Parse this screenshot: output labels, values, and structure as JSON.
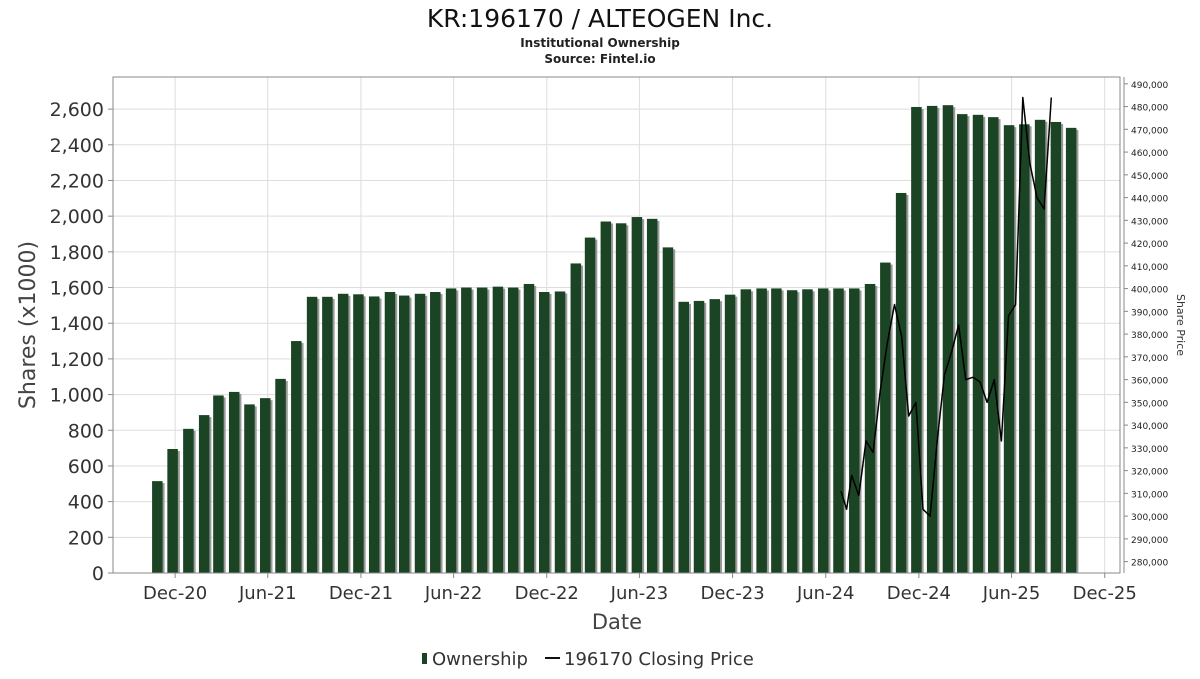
{
  "chart_data": {
    "type": "bar",
    "title": "KR:196170 / ALTEOGEN Inc.",
    "subtitle_lines": [
      "Institutional Ownership",
      "Source: Fintel.io"
    ],
    "xlabel": "Date",
    "ylabel": "Shares (x1000)",
    "y2label": "Share Price",
    "ylim": [
      0,
      2780
    ],
    "y2lim": [
      275000,
      493000
    ],
    "x_range": [
      "2020-08-01",
      "2025-12-31"
    ],
    "x_ticks": [
      {
        "date": "2020-12-01",
        "label": "Dec-20"
      },
      {
        "date": "2021-06-01",
        "label": "Jun-21"
      },
      {
        "date": "2021-12-01",
        "label": "Dec-21"
      },
      {
        "date": "2022-06-01",
        "label": "Jun-22"
      },
      {
        "date": "2022-12-01",
        "label": "Dec-22"
      },
      {
        "date": "2023-06-01",
        "label": "Jun-23"
      },
      {
        "date": "2023-12-01",
        "label": "Dec-23"
      },
      {
        "date": "2024-06-01",
        "label": "Jun-24"
      },
      {
        "date": "2024-12-01",
        "label": "Dec-24"
      },
      {
        "date": "2025-06-01",
        "label": "Jun-25"
      },
      {
        "date": "2025-12-01",
        "label": "Dec-25"
      }
    ],
    "y_ticks": [
      {
        "value": 0,
        "label": "0"
      },
      {
        "value": 200,
        "label": "200"
      },
      {
        "value": 400,
        "label": "400"
      },
      {
        "value": 600,
        "label": "600"
      },
      {
        "value": 800,
        "label": "800"
      },
      {
        "value": 1000,
        "label": "1,000"
      },
      {
        "value": 1200,
        "label": "1,200"
      },
      {
        "value": 1400,
        "label": "1,400"
      },
      {
        "value": 1600,
        "label": "1,600"
      },
      {
        "value": 1800,
        "label": "1,800"
      },
      {
        "value": 2000,
        "label": "2,000"
      },
      {
        "value": 2200,
        "label": "2,200"
      },
      {
        "value": 2400,
        "label": "2,400"
      },
      {
        "value": 2600,
        "label": "2,600"
      }
    ],
    "y2_ticks": [
      {
        "value": 280000,
        "label": "280,000"
      },
      {
        "value": 290000,
        "label": "290,000"
      },
      {
        "value": 300000,
        "label": "300,000"
      },
      {
        "value": 310000,
        "label": "310,000"
      },
      {
        "value": 320000,
        "label": "320,000"
      },
      {
        "value": 330000,
        "label": "330,000"
      },
      {
        "value": 340000,
        "label": "340,000"
      },
      {
        "value": 350000,
        "label": "350,000"
      },
      {
        "value": 360000,
        "label": "360,000"
      },
      {
        "value": 370000,
        "label": "370,000"
      },
      {
        "value": 380000,
        "label": "380,000"
      },
      {
        "value": 390000,
        "label": "390,000"
      },
      {
        "value": 400000,
        "label": "400,000"
      },
      {
        "value": 410000,
        "label": "410,000"
      },
      {
        "value": 420000,
        "label": "420,000"
      },
      {
        "value": 430000,
        "label": "430,000"
      },
      {
        "value": 440000,
        "label": "440,000"
      },
      {
        "value": 450000,
        "label": "450,000"
      },
      {
        "value": 460000,
        "label": "460,000"
      },
      {
        "value": 470000,
        "label": "470,000"
      },
      {
        "value": 480000,
        "label": "480,000"
      },
      {
        "value": 490000,
        "label": "490,000"
      }
    ],
    "grid": true,
    "legend_position": "bottom",
    "colors": {
      "bar": "#1b4424",
      "bar_shadow": "#9a9a9a",
      "line": "#000000",
      "grid": "#dddddd",
      "axis": "#888888",
      "text": "#333333"
    },
    "series": [
      {
        "name": "Ownership",
        "kind": "bar",
        "x": [
          "2020-10-31",
          "2020-11-30",
          "2020-12-31",
          "2021-01-31",
          "2021-02-28",
          "2021-03-31",
          "2021-04-30",
          "2021-05-31",
          "2021-06-30",
          "2021-07-31",
          "2021-08-31",
          "2021-09-30",
          "2021-10-31",
          "2021-11-30",
          "2021-12-31",
          "2022-01-31",
          "2022-02-28",
          "2022-03-31",
          "2022-04-30",
          "2022-05-31",
          "2022-06-30",
          "2022-07-31",
          "2022-08-31",
          "2022-09-30",
          "2022-10-31",
          "2022-11-30",
          "2022-12-31",
          "2023-01-31",
          "2023-02-28",
          "2023-03-31",
          "2023-04-30",
          "2023-05-31",
          "2023-06-30",
          "2023-07-31",
          "2023-08-31",
          "2023-09-30",
          "2023-10-31",
          "2023-11-30",
          "2023-12-31",
          "2024-01-31",
          "2024-02-29",
          "2024-03-31",
          "2024-04-30",
          "2024-05-31",
          "2024-06-30",
          "2024-07-31",
          "2024-08-31",
          "2024-09-30",
          "2024-10-31",
          "2024-11-30",
          "2024-12-31",
          "2025-01-31",
          "2025-02-28",
          "2025-03-31",
          "2025-04-30",
          "2025-05-31",
          "2025-06-30",
          "2025-07-31",
          "2025-08-31",
          "2025-09-30"
        ],
        "values": [
          515,
          695,
          808,
          885,
          995,
          1015,
          945,
          980,
          1088,
          1300,
          1548,
          1548,
          1565,
          1562,
          1550,
          1575,
          1555,
          1565,
          1575,
          1595,
          1600,
          1600,
          1605,
          1600,
          1620,
          1575,
          1578,
          1735,
          1880,
          1970,
          1960,
          1995,
          1985,
          1825,
          1520,
          1525,
          1535,
          1560,
          1590,
          1595,
          1595,
          1585,
          1590,
          1595,
          1595,
          1595,
          1620,
          1740,
          2130,
          2612,
          2618,
          2622,
          2572,
          2568,
          2555,
          2510,
          2515,
          2540,
          2528,
          2495
        ]
      },
      {
        "name": "196170 Closing Price",
        "kind": "line",
        "points": [
          [
            "2024-07-01",
            311000
          ],
          [
            "2024-07-12",
            303000
          ],
          [
            "2024-07-22",
            318000
          ],
          [
            "2024-08-05",
            309000
          ],
          [
            "2024-08-19",
            333000
          ],
          [
            "2024-09-02",
            328000
          ],
          [
            "2024-09-16",
            355000
          ],
          [
            "2024-09-30",
            376000
          ],
          [
            "2024-10-14",
            393000
          ],
          [
            "2024-10-28",
            379000
          ],
          [
            "2024-11-11",
            344000
          ],
          [
            "2024-11-25",
            350000
          ],
          [
            "2024-12-09",
            303000
          ],
          [
            "2024-12-23",
            300000
          ],
          [
            "2025-01-06",
            333000
          ],
          [
            "2025-01-20",
            362000
          ],
          [
            "2025-02-03",
            372000
          ],
          [
            "2025-02-17",
            384000
          ],
          [
            "2025-03-03",
            360000
          ],
          [
            "2025-03-17",
            361000
          ],
          [
            "2025-03-31",
            359000
          ],
          [
            "2025-04-14",
            350000
          ],
          [
            "2025-04-28",
            360000
          ],
          [
            "2025-05-12",
            333000
          ],
          [
            "2025-05-26",
            388000
          ],
          [
            "2025-06-09",
            393000
          ],
          [
            "2025-06-23",
            484000
          ],
          [
            "2025-07-07",
            455000
          ],
          [
            "2025-07-21",
            440000
          ],
          [
            "2025-08-04",
            435000
          ],
          [
            "2025-08-18",
            484000
          ]
        ]
      }
    ]
  },
  "legend": {
    "bar_label": "Ownership",
    "line_label": "196170 Closing Price"
  }
}
